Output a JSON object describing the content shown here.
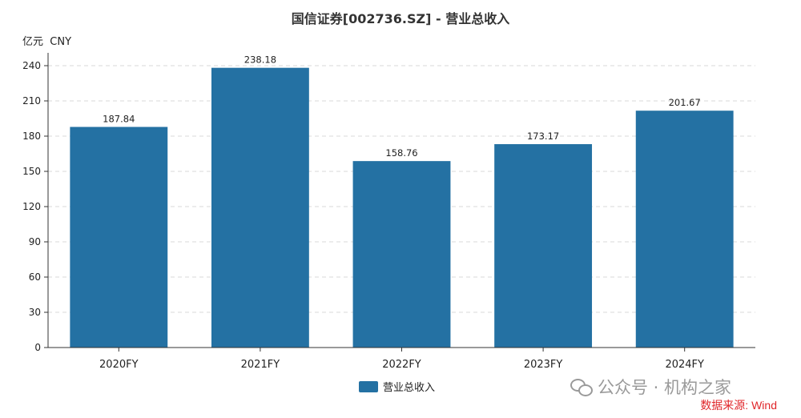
{
  "chart_data": {
    "type": "bar",
    "title": "国信证券[002736.SZ] - 营业总收入",
    "unit_label": "亿元  CNY",
    "categories": [
      "2020FY",
      "2021FY",
      "2022FY",
      "2023FY",
      "2024FY"
    ],
    "series": [
      {
        "name": "营业总收入",
        "values": [
          187.84,
          238.18,
          158.76,
          173.17,
          201.67
        ]
      }
    ],
    "data_labels": [
      "187.84",
      "238.18",
      "158.76",
      "173.17",
      "201.67"
    ],
    "ylim": [
      0,
      240
    ],
    "yticks": [
      0,
      30,
      60,
      90,
      120,
      150,
      180,
      210,
      240
    ],
    "grid": true,
    "legend_position": "bottom-center",
    "bar_color": "#2471a3"
  },
  "watermark": {
    "text": "公众号 · 机构之家",
    "icon": "wechat-icon"
  },
  "source": "数据来源: Wind"
}
